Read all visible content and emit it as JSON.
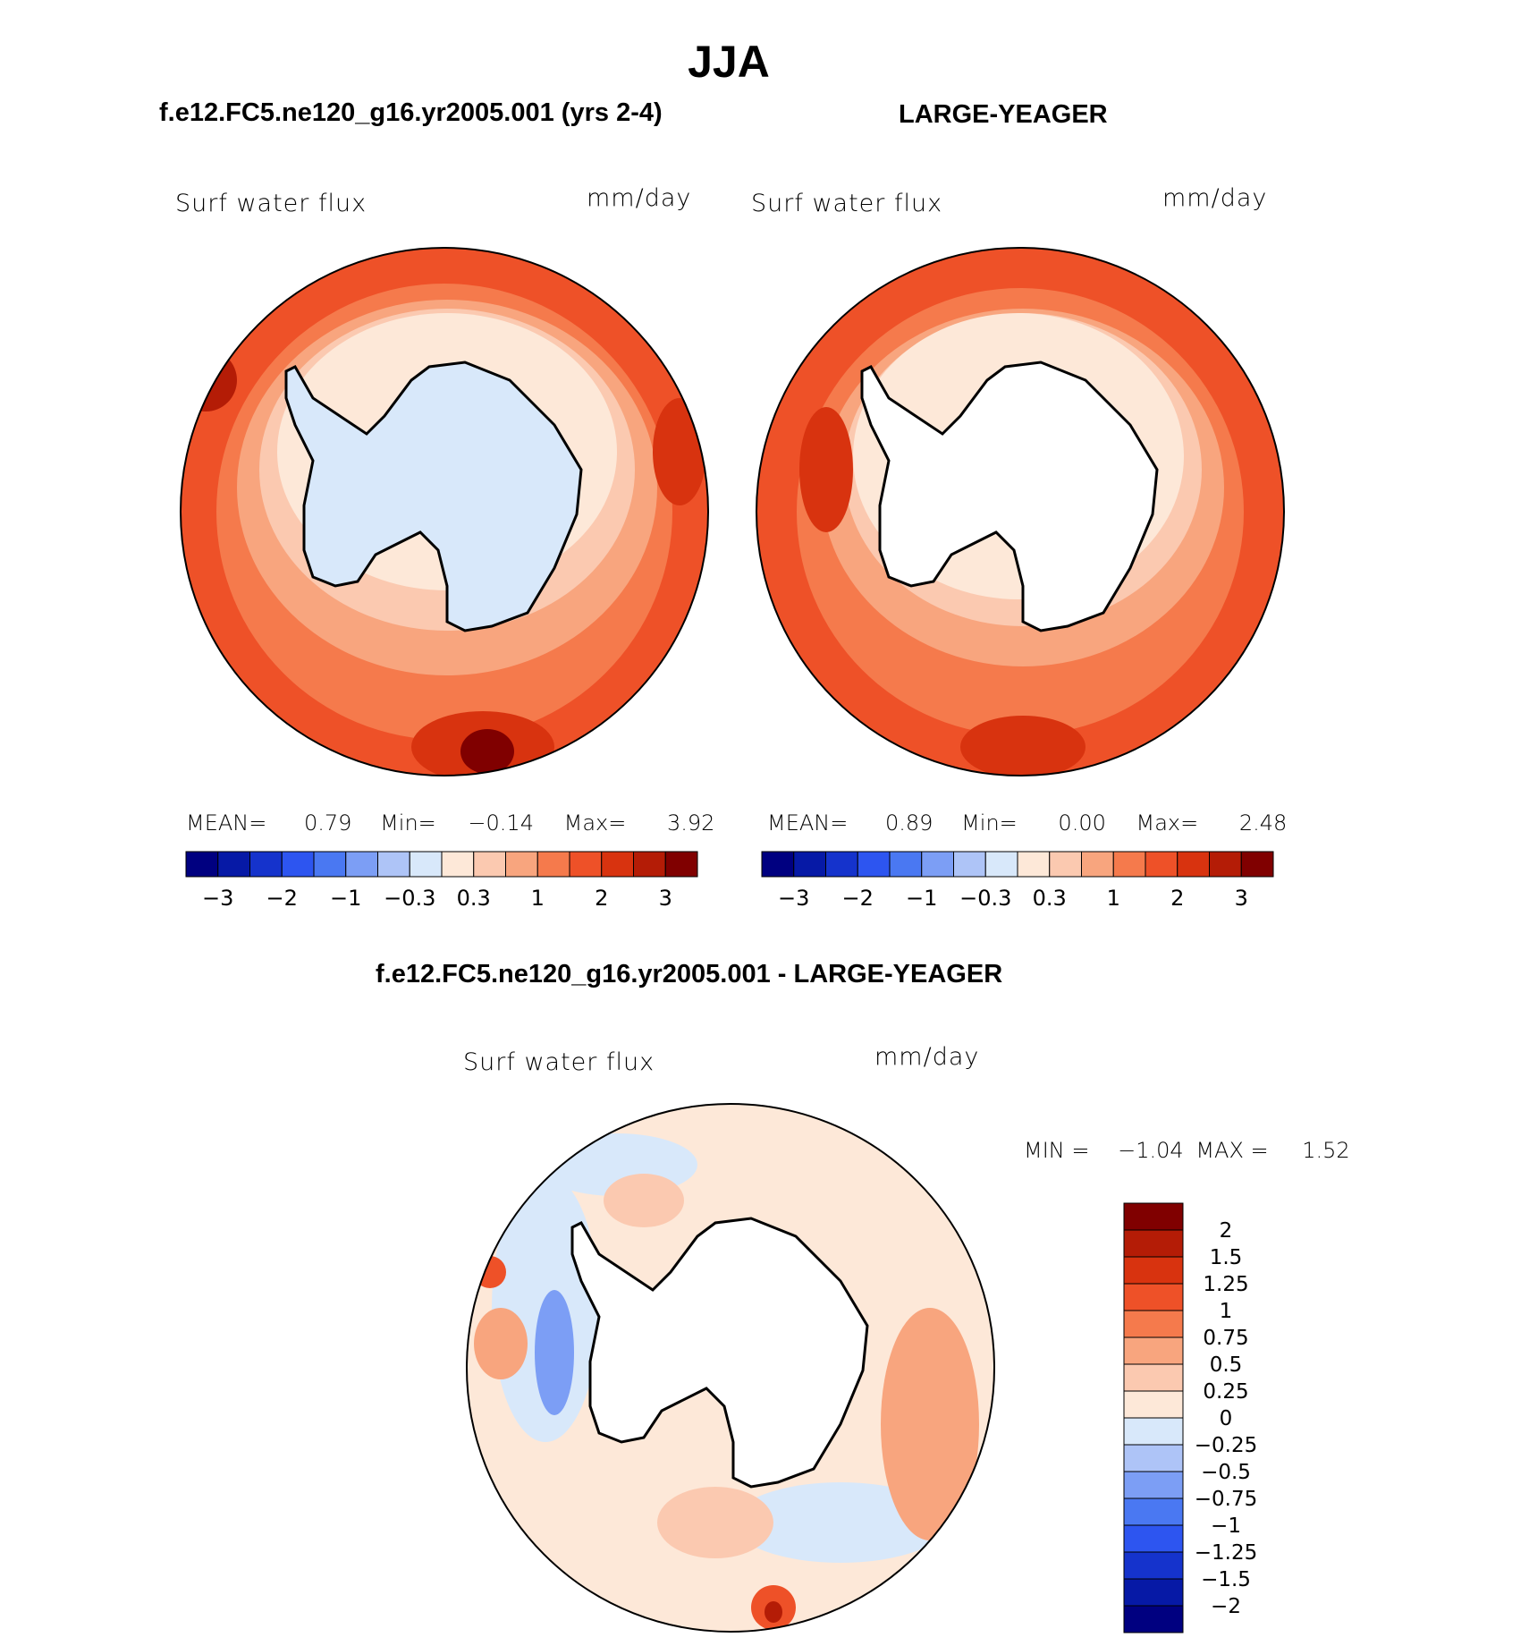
{
  "title": "JJA",
  "panels": [
    {
      "id": "model",
      "title": "f.e12.FC5.ne120_g16.yr2005.001 (yrs 2-4)",
      "variable": "Surf water flux",
      "units": "mm/day",
      "stats": {
        "mean_label": "MEAN=",
        "mean": "0.79",
        "min_label": "Min=",
        "min": "−0.14",
        "max_label": "Max=",
        "max": "3.92"
      }
    },
    {
      "id": "obs",
      "title": "LARGE-YEAGER",
      "variable": "Surf water flux",
      "units": "mm/day",
      "stats": {
        "mean_label": "MEAN=",
        "mean": "0.89",
        "min_label": "Min=",
        "min": "0.00",
        "max_label": "Max=",
        "max": "2.48"
      }
    }
  ],
  "diff_panel": {
    "title": "f.e12.FC5.ne120_g16.yr2005.001 - LARGE-YEAGER",
    "variable": "Surf water flux",
    "units": "mm/day",
    "stats": {
      "min_label": "MIN =",
      "min": "−1.04",
      "max_label": "MAX =",
      "max": "1.52"
    }
  },
  "colorbar_horizontal": {
    "colors": [
      "#000080",
      "#0619a6",
      "#1533cc",
      "#2d55f0",
      "#4a78f2",
      "#7c9ef5",
      "#aec4f7",
      "#d8e8fa",
      "#fde8d8",
      "#fbc9b0",
      "#f8a57e",
      "#f57a4c",
      "#ee5128",
      "#d8330f",
      "#b41c06",
      "#800000"
    ],
    "tick_labels": [
      "−3",
      "−2",
      "−1",
      "−0.3",
      "0.3",
      "1",
      "2",
      "3"
    ]
  },
  "colorbar_vertical": {
    "colors": [
      "#800000",
      "#b41c06",
      "#d8330f",
      "#ee5128",
      "#f57a4c",
      "#f8a57e",
      "#fbc9b0",
      "#fde8d8",
      "#d8e8fa",
      "#aec4f7",
      "#7c9ef5",
      "#4a78f2",
      "#2d55f0",
      "#1533cc",
      "#0619a6",
      "#000080"
    ],
    "tick_labels": [
      "2",
      "1.5",
      "1.25",
      "1",
      "0.75",
      "0.5",
      "0.25",
      "0",
      "−0.25",
      "−0.5",
      "−0.75",
      "−1",
      "−1.25",
      "−1.5",
      "−2"
    ]
  },
  "chart_data": [
    {
      "type": "heatmap",
      "title": "f.e12.FC5.ne120_g16.yr2005.001 (yrs 2-4)",
      "variable": "Surf water flux",
      "units": "mm/day",
      "projection": "south polar stereographic",
      "mean": 0.79,
      "min": -0.14,
      "max": 3.92,
      "color_levels": [
        -3,
        -2.5,
        -2,
        -1.5,
        -1,
        -0.6,
        -0.3,
        0,
        0.3,
        0.6,
        1,
        1.5,
        2,
        2.5,
        3
      ],
      "colorbar_ticks": [
        -3,
        -2,
        -1,
        -0.3,
        0.3,
        1,
        2,
        3
      ]
    },
    {
      "type": "heatmap",
      "title": "LARGE-YEAGER",
      "variable": "Surf water flux",
      "units": "mm/day",
      "projection": "south polar stereographic",
      "mean": 0.89,
      "min": 0.0,
      "max": 2.48,
      "color_levels": [
        -3,
        -2.5,
        -2,
        -1.5,
        -1,
        -0.6,
        -0.3,
        0,
        0.3,
        0.6,
        1,
        1.5,
        2,
        2.5,
        3
      ],
      "colorbar_ticks": [
        -3,
        -2,
        -1,
        -0.3,
        0.3,
        1,
        2,
        3
      ]
    },
    {
      "type": "heatmap",
      "title": "f.e12.FC5.ne120_g16.yr2005.001 - LARGE-YEAGER",
      "variable": "Surf water flux",
      "units": "mm/day",
      "projection": "south polar stereographic",
      "min": -1.04,
      "max": 1.52,
      "color_levels": [
        -2,
        -1.5,
        -1.25,
        -1,
        -0.75,
        -0.5,
        -0.25,
        0,
        0.25,
        0.5,
        0.75,
        1,
        1.25,
        1.5,
        2
      ],
      "colorbar_ticks": [
        2,
        1.5,
        1.25,
        1,
        0.75,
        0.5,
        0.25,
        0,
        -0.25,
        -0.5,
        -0.75,
        -1,
        -1.25,
        -1.5,
        -2
      ]
    }
  ]
}
